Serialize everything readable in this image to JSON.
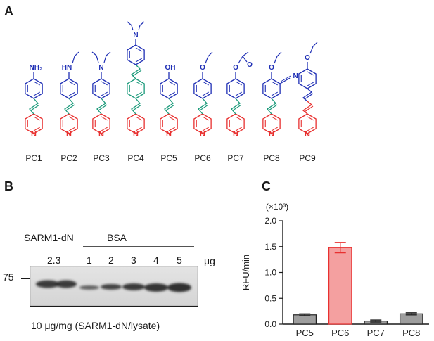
{
  "panels": {
    "a": {
      "letter": "A",
      "compounds": [
        {
          "label": "PC1",
          "substituent": "NH₂",
          "variant": "nh2"
        },
        {
          "label": "PC2",
          "substituent": "HN",
          "variant": "nhet"
        },
        {
          "label": "PC3",
          "substituent": "N",
          "variant": "net2"
        },
        {
          "label": "PC4",
          "substituent": "N",
          "variant": "extended"
        },
        {
          "label": "PC5",
          "substituent": "OH",
          "variant": "oh"
        },
        {
          "label": "PC6",
          "substituent": "O",
          "variant": "oet"
        },
        {
          "label": "PC7",
          "substituent": "O",
          "substituent2": "O",
          "variant": "oac"
        },
        {
          "label": "PC8",
          "substituent": "O",
          "substituent2": "N",
          "variant": "cn"
        },
        {
          "label": "PC9",
          "substituent": "O",
          "variant": "diene"
        }
      ],
      "pyridine_atom": "N",
      "colors": {
        "pyridine": "#e8302f",
        "linker": "#1a9a7a",
        "aryl": "#1f2fb5"
      }
    },
    "b": {
      "letter": "B",
      "sarm_label": "SARM1-dN",
      "sarm_amount": "2.3",
      "bsa_label": "BSA",
      "bsa_lanes": [
        "1",
        "2",
        "3",
        "4",
        "5"
      ],
      "unit": "μg",
      "marker": "75",
      "caption": "10 μg/mg (SARM1-dN/lysate)"
    },
    "c": {
      "letter": "C"
    }
  },
  "chart_data": {
    "type": "bar",
    "categories": [
      "PC5",
      "PC6",
      "PC7",
      "PC8"
    ],
    "values": [
      0.18,
      1.48,
      0.06,
      0.2
    ],
    "errors": [
      0.02,
      0.1,
      0.02,
      0.02
    ],
    "colors": [
      "#9e9e9e",
      "#f4a0a0",
      "#9e9e9e",
      "#9e9e9e"
    ],
    "edge_colors": [
      "#222222",
      "#e8302f",
      "#222222",
      "#222222"
    ],
    "ylabel": "RFU/min",
    "yscale_label": "(×10³)",
    "ylim": [
      0,
      2.0
    ],
    "yticks": [
      "0.0",
      "0.5",
      "1.0",
      "1.5",
      "2.0"
    ]
  }
}
